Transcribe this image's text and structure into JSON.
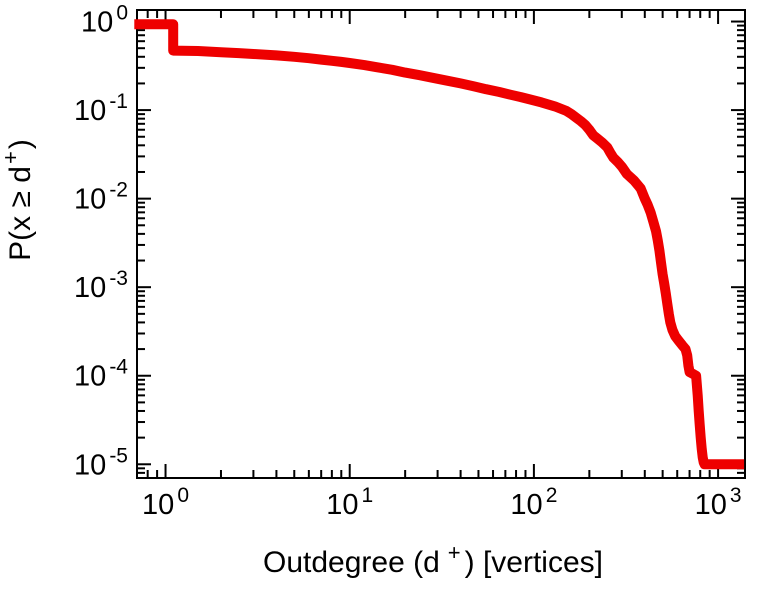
{
  "chart_data": {
    "type": "line",
    "title": "",
    "xlabel": "Outdegree (d+) [vertices]",
    "ylabel": "P(x >= d+)",
    "xlabel_parts": {
      "prefix": "Outdegree (d",
      "sup": "+",
      "suffix": ") [vertices]"
    },
    "ylabel_parts": {
      "prefix": "P(x ≥ d",
      "sup": "+",
      "suffix": ")"
    },
    "x_scale": "log",
    "y_scale": "log",
    "x_range": [
      0.7,
      1400
    ],
    "y_range": [
      7e-06,
      1.35
    ],
    "x_tick_exponents": [
      "0",
      "1",
      "2",
      "3"
    ],
    "y_tick_exponents": [
      "0",
      "-1",
      "-2",
      "-3",
      "-4",
      "-5"
    ],
    "tick_label_base": "10",
    "grid": false,
    "legend": "none",
    "line_color": "#ee0000",
    "frame_color": "#000000",
    "series": [
      {
        "name": "outdegree-ccdf",
        "points": [
          [
            0.72,
            0.93
          ],
          [
            1.1,
            0.93
          ],
          [
            1.1,
            0.47
          ],
          [
            1.5,
            0.465
          ],
          [
            2,
            0.45
          ],
          [
            2.5,
            0.44
          ],
          [
            3,
            0.43
          ],
          [
            4,
            0.415
          ],
          [
            5,
            0.4
          ],
          [
            6,
            0.385
          ],
          [
            7,
            0.372
          ],
          [
            8,
            0.36
          ],
          [
            9,
            0.35
          ],
          [
            10,
            0.34
          ],
          [
            12,
            0.322
          ],
          [
            14,
            0.305
          ],
          [
            17,
            0.285
          ],
          [
            20,
            0.265
          ],
          [
            24,
            0.248
          ],
          [
            28,
            0.232
          ],
          [
            33,
            0.217
          ],
          [
            40,
            0.2
          ],
          [
            47,
            0.186
          ],
          [
            55,
            0.172
          ],
          [
            65,
            0.16
          ],
          [
            75,
            0.149
          ],
          [
            85,
            0.14
          ],
          [
            95,
            0.132
          ],
          [
            110,
            0.122
          ],
          [
            130,
            0.11
          ],
          [
            150,
            0.098
          ],
          [
            160,
            0.09
          ],
          [
            170,
            0.082
          ],
          [
            180,
            0.075
          ],
          [
            190,
            0.068
          ],
          [
            200,
            0.06
          ],
          [
            210,
            0.052
          ],
          [
            220,
            0.048
          ],
          [
            235,
            0.043
          ],
          [
            250,
            0.038
          ],
          [
            260,
            0.033
          ],
          [
            270,
            0.029
          ],
          [
            285,
            0.026
          ],
          [
            300,
            0.023
          ],
          [
            320,
            0.019
          ],
          [
            350,
            0.016
          ],
          [
            380,
            0.013
          ],
          [
            400,
            0.01
          ],
          [
            415,
            0.0085
          ],
          [
            430,
            0.007
          ],
          [
            445,
            0.0055
          ],
          [
            460,
            0.0043
          ],
          [
            470,
            0.0034
          ],
          [
            480,
            0.0026
          ],
          [
            490,
            0.0019
          ],
          [
            500,
            0.0014
          ],
          [
            510,
            0.0011
          ],
          [
            520,
            0.00085
          ],
          [
            530,
            0.00065
          ],
          [
            540,
            0.0005
          ],
          [
            550,
            0.0004
          ],
          [
            565,
            0.00033
          ],
          [
            585,
            0.00028
          ],
          [
            610,
            0.00025
          ],
          [
            640,
            0.00022
          ],
          [
            665,
            0.0002
          ],
          [
            680,
            0.00017
          ],
          [
            690,
            0.00013
          ],
          [
            700,
            0.00011
          ],
          [
            730,
            0.000105
          ],
          [
            760,
            0.0001
          ],
          [
            775,
            6e-05
          ],
          [
            785,
            4e-05
          ],
          [
            795,
            2.8e-05
          ],
          [
            805,
            2e-05
          ],
          [
            815,
            1.5e-05
          ],
          [
            825,
            1.2e-05
          ],
          [
            835,
            1.05e-05
          ],
          [
            845,
            1e-05
          ],
          [
            1300,
            1e-05
          ]
        ]
      }
    ]
  }
}
